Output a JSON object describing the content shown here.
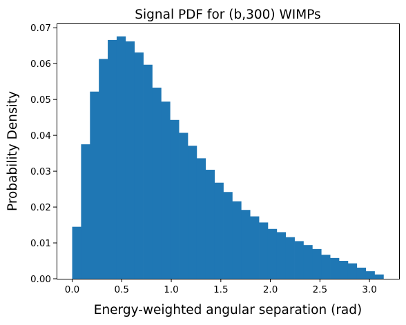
{
  "chart_data": {
    "type": "bar",
    "title": "Signal PDF for (b,300) WIMPs",
    "xlabel": "Energy-weighted angular separation (rad)",
    "ylabel": "Probability Density",
    "xlim": [
      -0.157,
      3.299
    ],
    "ylim": [
      0,
      0.0712
    ],
    "xticks": [
      0.0,
      0.5,
      1.0,
      1.5,
      2.0,
      2.5,
      3.0
    ],
    "xtick_labels": [
      "0.0",
      "0.5",
      "1.0",
      "1.5",
      "2.0",
      "2.5",
      "3.0"
    ],
    "yticks": [
      0.0,
      0.01,
      0.02,
      0.03,
      0.04,
      0.05,
      0.06,
      0.07
    ],
    "ytick_labels": [
      "0.00",
      "0.01",
      "0.02",
      "0.03",
      "0.04",
      "0.05",
      "0.06",
      "0.07"
    ],
    "bin_edges": [
      0.0,
      0.0898,
      0.1795,
      0.2693,
      0.359,
      0.4488,
      0.5386,
      0.6283,
      0.7181,
      0.8078,
      0.8976,
      0.9874,
      1.0771,
      1.1669,
      1.2566,
      1.3464,
      1.4362,
      1.5259,
      1.6157,
      1.7054,
      1.7952,
      1.885,
      1.9747,
      2.0645,
      2.1542,
      2.244,
      2.3338,
      2.4235,
      2.5133,
      2.603,
      2.6928,
      2.7826,
      2.8723,
      2.9621,
      3.0518,
      3.1416
    ],
    "values": [
      0.0145,
      0.0375,
      0.0522,
      0.0613,
      0.0666,
      0.0676,
      0.0662,
      0.0631,
      0.0597,
      0.0533,
      0.0494,
      0.0443,
      0.0407,
      0.0371,
      0.0336,
      0.0304,
      0.0268,
      0.0242,
      0.0216,
      0.0192,
      0.0174,
      0.0157,
      0.0139,
      0.013,
      0.0116,
      0.0105,
      0.0094,
      0.0083,
      0.0067,
      0.0058,
      0.005,
      0.0043,
      0.0031,
      0.0021,
      0.0012
    ],
    "color": "#1f77b4",
    "grid": false,
    "legend": "none"
  }
}
